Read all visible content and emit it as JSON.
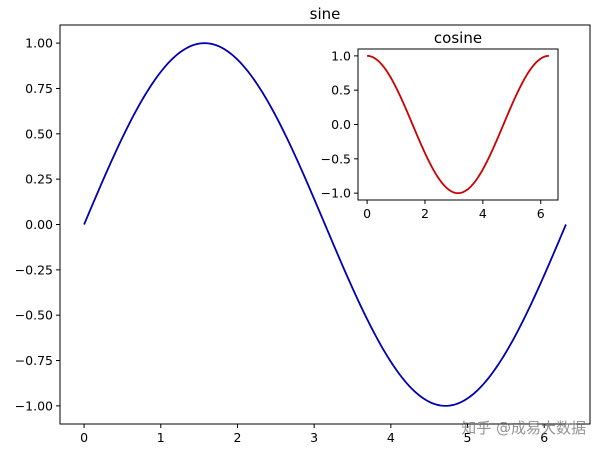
{
  "chart_data": [
    {
      "type": "line",
      "title": "sine",
      "xlabel": "",
      "ylabel": "",
      "xlim": [
        -0.314,
        6.597
      ],
      "ylim": [
        -1.1,
        1.1
      ],
      "xticks": [
        0,
        1,
        2,
        3,
        4,
        5,
        6
      ],
      "xtick_labels": [
        "0",
        "1",
        "2",
        "3",
        "4",
        "5",
        "6"
      ],
      "yticks": [
        1.0,
        0.75,
        0.5,
        0.25,
        0.0,
        -0.25,
        -0.5,
        -0.75,
        -1.0
      ],
      "ytick_labels": [
        "1.00",
        "0.75",
        "0.50",
        "0.25",
        "0.00",
        "−0.25",
        "−0.50",
        "−0.75",
        "−1.00"
      ],
      "grid": false,
      "series": [
        {
          "function": "sin(x)",
          "color": "#0000b0",
          "x": [
            0,
            0.314,
            0.628,
            0.942,
            1.257,
            1.571,
            1.885,
            2.199,
            2.513,
            2.827,
            3.142,
            3.456,
            3.77,
            4.084,
            4.398,
            4.712,
            5.027,
            5.341,
            5.655,
            5.969,
            6.283
          ],
          "y": [
            0,
            0.309,
            0.588,
            0.809,
            0.951,
            1.0,
            0.951,
            0.809,
            0.588,
            0.309,
            0,
            -0.309,
            -0.588,
            -0.809,
            -0.951,
            -1.0,
            -0.951,
            -0.809,
            -0.588,
            -0.309,
            0
          ]
        }
      ]
    },
    {
      "type": "line",
      "title": "cosine",
      "xlabel": "",
      "ylabel": "",
      "xlim": [
        -0.314,
        6.597
      ],
      "ylim": [
        -1.1,
        1.1
      ],
      "xticks": [
        0,
        2,
        4,
        6
      ],
      "xtick_labels": [
        "0",
        "2",
        "4",
        "6"
      ],
      "yticks": [
        1.0,
        0.5,
        0.0,
        -0.5,
        -1.0
      ],
      "ytick_labels": [
        "1.0",
        "0.5",
        "0.0",
        "−0.5",
        "−1.0"
      ],
      "grid": false,
      "series": [
        {
          "function": "cos(x)",
          "color": "#cc0000",
          "x": [
            0,
            0.314,
            0.628,
            0.942,
            1.257,
            1.571,
            1.885,
            2.199,
            2.513,
            2.827,
            3.142,
            3.456,
            3.77,
            4.084,
            4.398,
            4.712,
            5.027,
            5.341,
            5.655,
            5.969,
            6.283
          ],
          "y": [
            1.0,
            0.951,
            0.809,
            0.588,
            0.309,
            0,
            -0.309,
            -0.588,
            -0.809,
            -0.951,
            -1.0,
            -0.951,
            -0.809,
            -0.588,
            -0.309,
            0,
            0.309,
            0.588,
            0.809,
            0.951,
            1.0
          ]
        }
      ]
    }
  ],
  "watermark": "知乎 @成易大数据"
}
